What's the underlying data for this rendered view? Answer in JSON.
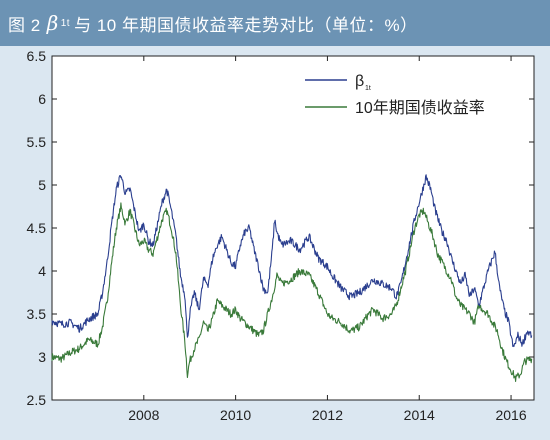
{
  "title": {
    "prefix": "图 2",
    "beta_symbol": "β",
    "beta_subscript": "1t",
    "suffix": "与 10 年期国债收益率走势对比（单位：%）"
  },
  "colors": {
    "title_bg": "#6c93b4",
    "page_bg": "#dbe7f1",
    "plot_bg": "#ffffff",
    "beta_line": "#2b3f8f",
    "bond_line": "#3a7a3a"
  },
  "chart_data": {
    "type": "line",
    "title": "",
    "xlabel": "",
    "ylabel": "",
    "xlim": [
      2006.0,
      2016.5
    ],
    "ylim": [
      2.5,
      6.5
    ],
    "x_ticks": [
      2008,
      2010,
      2012,
      2014,
      2016
    ],
    "y_ticks": [
      2.5,
      3,
      3.5,
      4,
      4.5,
      5,
      5.5,
      6,
      6.5
    ],
    "y_tick_labels": [
      "2.5",
      "3",
      "3.5",
      "4",
      "4.5",
      "5",
      "5.5",
      "6",
      "6.5"
    ],
    "grid": false,
    "legend_position": "top-right",
    "series": [
      {
        "name": "β",
        "name_subscript": "1t",
        "color": "#2b3f8f",
        "points": [
          [
            2006.0,
            3.42
          ],
          [
            2006.2,
            3.38
          ],
          [
            2006.4,
            3.4
          ],
          [
            2006.6,
            3.33
          ],
          [
            2006.8,
            3.44
          ],
          [
            2007.0,
            3.5
          ],
          [
            2007.1,
            3.75
          ],
          [
            2007.2,
            4.1
          ],
          [
            2007.3,
            4.55
          ],
          [
            2007.4,
            4.95
          ],
          [
            2007.5,
            5.12
          ],
          [
            2007.6,
            4.9
          ],
          [
            2007.7,
            4.95
          ],
          [
            2007.8,
            4.7
          ],
          [
            2007.9,
            4.45
          ],
          [
            2008.0,
            4.55
          ],
          [
            2008.1,
            4.35
          ],
          [
            2008.2,
            4.3
          ],
          [
            2008.3,
            4.55
          ],
          [
            2008.4,
            4.8
          ],
          [
            2008.5,
            4.95
          ],
          [
            2008.6,
            4.7
          ],
          [
            2008.7,
            4.4
          ],
          [
            2008.8,
            3.95
          ],
          [
            2008.9,
            3.7
          ],
          [
            2008.95,
            3.2
          ],
          [
            2009.0,
            3.5
          ],
          [
            2009.1,
            3.75
          ],
          [
            2009.2,
            3.55
          ],
          [
            2009.3,
            3.9
          ],
          [
            2009.4,
            3.85
          ],
          [
            2009.5,
            4.15
          ],
          [
            2009.6,
            4.3
          ],
          [
            2009.7,
            4.4
          ],
          [
            2009.8,
            4.25
          ],
          [
            2009.9,
            4.1
          ],
          [
            2010.0,
            4.05
          ],
          [
            2010.1,
            4.3
          ],
          [
            2010.2,
            4.45
          ],
          [
            2010.3,
            4.5
          ],
          [
            2010.4,
            4.25
          ],
          [
            2010.5,
            4.05
          ],
          [
            2010.6,
            3.8
          ],
          [
            2010.7,
            3.75
          ],
          [
            2010.8,
            4.25
          ],
          [
            2010.85,
            4.6
          ],
          [
            2010.9,
            4.45
          ],
          [
            2011.0,
            4.3
          ],
          [
            2011.2,
            4.35
          ],
          [
            2011.4,
            4.25
          ],
          [
            2011.6,
            4.4
          ],
          [
            2011.8,
            4.15
          ],
          [
            2012.0,
            4.05
          ],
          [
            2012.1,
            3.95
          ],
          [
            2012.3,
            3.8
          ],
          [
            2012.5,
            3.7
          ],
          [
            2012.7,
            3.75
          ],
          [
            2012.9,
            3.85
          ],
          [
            2013.0,
            3.9
          ],
          [
            2013.2,
            3.85
          ],
          [
            2013.4,
            3.8
          ],
          [
            2013.5,
            3.7
          ],
          [
            2013.6,
            3.85
          ],
          [
            2013.7,
            4.1
          ],
          [
            2013.8,
            4.35
          ],
          [
            2013.9,
            4.6
          ],
          [
            2014.0,
            4.8
          ],
          [
            2014.1,
            5.0
          ],
          [
            2014.15,
            5.1
          ],
          [
            2014.25,
            4.95
          ],
          [
            2014.35,
            4.7
          ],
          [
            2014.5,
            4.45
          ],
          [
            2014.6,
            4.35
          ],
          [
            2014.7,
            4.15
          ],
          [
            2014.8,
            4.0
          ],
          [
            2014.9,
            3.85
          ],
          [
            2015.0,
            3.95
          ],
          [
            2015.1,
            3.7
          ],
          [
            2015.2,
            3.8
          ],
          [
            2015.3,
            3.6
          ],
          [
            2015.4,
            3.8
          ],
          [
            2015.5,
            4.0
          ],
          [
            2015.6,
            4.15
          ],
          [
            2015.65,
            4.22
          ],
          [
            2015.75,
            3.8
          ],
          [
            2015.85,
            3.55
          ],
          [
            2015.95,
            3.4
          ],
          [
            2016.05,
            3.1
          ],
          [
            2016.15,
            3.25
          ],
          [
            2016.25,
            3.15
          ],
          [
            2016.35,
            3.3
          ],
          [
            2016.45,
            3.25
          ]
        ]
      },
      {
        "name": "10年期国债收益率",
        "color": "#3a7a3a",
        "points": [
          [
            2006.0,
            3.0
          ],
          [
            2006.2,
            2.98
          ],
          [
            2006.4,
            3.05
          ],
          [
            2006.6,
            3.1
          ],
          [
            2006.8,
            3.2
          ],
          [
            2007.0,
            3.15
          ],
          [
            2007.1,
            3.35
          ],
          [
            2007.2,
            3.65
          ],
          [
            2007.3,
            4.1
          ],
          [
            2007.4,
            4.5
          ],
          [
            2007.5,
            4.75
          ],
          [
            2007.6,
            4.55
          ],
          [
            2007.7,
            4.7
          ],
          [
            2007.8,
            4.5
          ],
          [
            2007.9,
            4.3
          ],
          [
            2008.0,
            4.35
          ],
          [
            2008.1,
            4.25
          ],
          [
            2008.2,
            4.2
          ],
          [
            2008.3,
            4.4
          ],
          [
            2008.4,
            4.6
          ],
          [
            2008.5,
            4.7
          ],
          [
            2008.6,
            4.5
          ],
          [
            2008.7,
            4.2
          ],
          [
            2008.8,
            3.6
          ],
          [
            2008.9,
            3.15
          ],
          [
            2008.95,
            2.8
          ],
          [
            2009.0,
            2.95
          ],
          [
            2009.1,
            3.1
          ],
          [
            2009.2,
            3.2
          ],
          [
            2009.3,
            3.4
          ],
          [
            2009.4,
            3.3
          ],
          [
            2009.5,
            3.45
          ],
          [
            2009.6,
            3.65
          ],
          [
            2009.7,
            3.6
          ],
          [
            2009.8,
            3.55
          ],
          [
            2009.9,
            3.5
          ],
          [
            2010.0,
            3.55
          ],
          [
            2010.1,
            3.45
          ],
          [
            2010.2,
            3.4
          ],
          [
            2010.3,
            3.35
          ],
          [
            2010.4,
            3.3
          ],
          [
            2010.5,
            3.25
          ],
          [
            2010.6,
            3.3
          ],
          [
            2010.7,
            3.5
          ],
          [
            2010.8,
            3.7
          ],
          [
            2010.9,
            3.95
          ],
          [
            2011.0,
            3.85
          ],
          [
            2011.2,
            3.9
          ],
          [
            2011.4,
            4.0
          ],
          [
            2011.6,
            3.95
          ],
          [
            2011.8,
            3.75
          ],
          [
            2012.0,
            3.5
          ],
          [
            2012.1,
            3.45
          ],
          [
            2012.3,
            3.4
          ],
          [
            2012.5,
            3.3
          ],
          [
            2012.7,
            3.35
          ],
          [
            2012.9,
            3.5
          ],
          [
            2013.0,
            3.55
          ],
          [
            2013.2,
            3.45
          ],
          [
            2013.4,
            3.5
          ],
          [
            2013.5,
            3.6
          ],
          [
            2013.6,
            3.8
          ],
          [
            2013.7,
            4.0
          ],
          [
            2013.8,
            4.25
          ],
          [
            2013.9,
            4.5
          ],
          [
            2014.0,
            4.65
          ],
          [
            2014.1,
            4.7
          ],
          [
            2014.2,
            4.55
          ],
          [
            2014.3,
            4.4
          ],
          [
            2014.4,
            4.2
          ],
          [
            2014.5,
            4.1
          ],
          [
            2014.6,
            4.0
          ],
          [
            2014.7,
            3.9
          ],
          [
            2014.8,
            3.7
          ],
          [
            2014.9,
            3.6
          ],
          [
            2015.0,
            3.55
          ],
          [
            2015.1,
            3.5
          ],
          [
            2015.2,
            3.4
          ],
          [
            2015.3,
            3.6
          ],
          [
            2015.4,
            3.55
          ],
          [
            2015.5,
            3.5
          ],
          [
            2015.6,
            3.4
          ],
          [
            2015.7,
            3.3
          ],
          [
            2015.8,
            3.1
          ],
          [
            2015.9,
            2.95
          ],
          [
            2016.0,
            2.85
          ],
          [
            2016.1,
            2.75
          ],
          [
            2016.2,
            2.8
          ],
          [
            2016.3,
            2.95
          ],
          [
            2016.45,
            2.98
          ]
        ]
      }
    ]
  }
}
